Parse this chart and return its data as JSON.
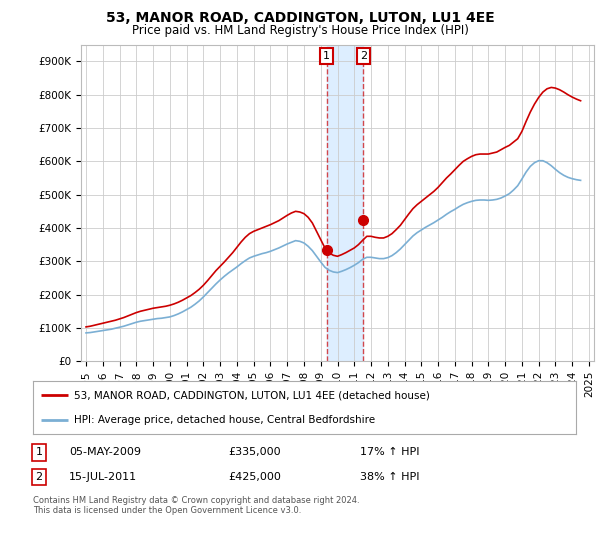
{
  "title": "53, MANOR ROAD, CADDINGTON, LUTON, LU1 4EE",
  "subtitle": "Price paid vs. HM Land Registry's House Price Index (HPI)",
  "legend_line1": "53, MANOR ROAD, CADDINGTON, LUTON, LU1 4EE (detached house)",
  "legend_line2": "HPI: Average price, detached house, Central Bedfordshire",
  "footnote": "Contains HM Land Registry data © Crown copyright and database right 2024.\nThis data is licensed under the Open Government Licence v3.0.",
  "transaction1_date": "05-MAY-2009",
  "transaction1_price": "£335,000",
  "transaction1_hpi": "17% ↑ HPI",
  "transaction2_date": "15-JUL-2011",
  "transaction2_price": "£425,000",
  "transaction2_hpi": "38% ↑ HPI",
  "red_color": "#cc0000",
  "blue_color": "#7bafd4",
  "shaded_color": "#ddeeff",
  "ylim": [
    0,
    950000
  ],
  "xlim_start": 1994.7,
  "xlim_end": 2025.3,
  "red_years": [
    1995.0,
    1995.25,
    1995.5,
    1995.75,
    1996.0,
    1996.25,
    1996.5,
    1996.75,
    1997.0,
    1997.25,
    1997.5,
    1997.75,
    1998.0,
    1998.25,
    1998.5,
    1998.75,
    1999.0,
    1999.25,
    1999.5,
    1999.75,
    2000.0,
    2000.25,
    2000.5,
    2000.75,
    2001.0,
    2001.25,
    2001.5,
    2001.75,
    2002.0,
    2002.25,
    2002.5,
    2002.75,
    2003.0,
    2003.25,
    2003.5,
    2003.75,
    2004.0,
    2004.25,
    2004.5,
    2004.75,
    2005.0,
    2005.25,
    2005.5,
    2005.75,
    2006.0,
    2006.25,
    2006.5,
    2006.75,
    2007.0,
    2007.25,
    2007.5,
    2007.75,
    2008.0,
    2008.25,
    2008.5,
    2008.75,
    2009.0,
    2009.25,
    2009.5,
    2009.75,
    2010.0,
    2010.25,
    2010.5,
    2010.75,
    2011.0,
    2011.25,
    2011.5,
    2011.75,
    2012.0,
    2012.25,
    2012.5,
    2012.75,
    2013.0,
    2013.25,
    2013.5,
    2013.75,
    2014.0,
    2014.25,
    2014.5,
    2014.75,
    2015.0,
    2015.25,
    2015.5,
    2015.75,
    2016.0,
    2016.25,
    2016.5,
    2016.75,
    2017.0,
    2017.25,
    2017.5,
    2017.75,
    2018.0,
    2018.25,
    2018.5,
    2018.75,
    2019.0,
    2019.25,
    2019.5,
    2019.75,
    2020.0,
    2020.25,
    2020.5,
    2020.75,
    2021.0,
    2021.25,
    2021.5,
    2021.75,
    2022.0,
    2022.25,
    2022.5,
    2022.75,
    2023.0,
    2023.25,
    2023.5,
    2023.75,
    2024.0,
    2024.25,
    2024.5
  ],
  "red_values": [
    103000,
    105000,
    108000,
    111000,
    114000,
    117000,
    120000,
    123000,
    127000,
    131000,
    136000,
    141000,
    146000,
    150000,
    153000,
    156000,
    159000,
    161000,
    163000,
    165000,
    168000,
    172000,
    177000,
    183000,
    190000,
    197000,
    206000,
    216000,
    228000,
    242000,
    257000,
    272000,
    285000,
    298000,
    312000,
    326000,
    342000,
    358000,
    372000,
    383000,
    390000,
    395000,
    400000,
    405000,
    410000,
    416000,
    422000,
    430000,
    438000,
    445000,
    450000,
    448000,
    443000,
    432000,
    415000,
    390000,
    365000,
    340000,
    325000,
    318000,
    315000,
    320000,
    326000,
    333000,
    340000,
    350000,
    363000,
    375000,
    375000,
    372000,
    370000,
    370000,
    375000,
    383000,
    395000,
    408000,
    425000,
    442000,
    458000,
    470000,
    480000,
    490000,
    500000,
    510000,
    522000,
    536000,
    550000,
    562000,
    575000,
    588000,
    600000,
    608000,
    615000,
    620000,
    622000,
    622000,
    622000,
    625000,
    628000,
    635000,
    642000,
    648000,
    658000,
    668000,
    690000,
    720000,
    748000,
    772000,
    792000,
    808000,
    818000,
    822000,
    820000,
    815000,
    808000,
    800000,
    793000,
    787000,
    782000
  ],
  "blue_years": [
    1995.0,
    1995.25,
    1995.5,
    1995.75,
    1996.0,
    1996.25,
    1996.5,
    1996.75,
    1997.0,
    1997.25,
    1997.5,
    1997.75,
    1998.0,
    1998.25,
    1998.5,
    1998.75,
    1999.0,
    1999.25,
    1999.5,
    1999.75,
    2000.0,
    2000.25,
    2000.5,
    2000.75,
    2001.0,
    2001.25,
    2001.5,
    2001.75,
    2002.0,
    2002.25,
    2002.5,
    2002.75,
    2003.0,
    2003.25,
    2003.5,
    2003.75,
    2004.0,
    2004.25,
    2004.5,
    2004.75,
    2005.0,
    2005.25,
    2005.5,
    2005.75,
    2006.0,
    2006.25,
    2006.5,
    2006.75,
    2007.0,
    2007.25,
    2007.5,
    2007.75,
    2008.0,
    2008.25,
    2008.5,
    2008.75,
    2009.0,
    2009.25,
    2009.5,
    2009.75,
    2010.0,
    2010.25,
    2010.5,
    2010.75,
    2011.0,
    2011.25,
    2011.5,
    2011.75,
    2012.0,
    2012.25,
    2012.5,
    2012.75,
    2013.0,
    2013.25,
    2013.5,
    2013.75,
    2014.0,
    2014.25,
    2014.5,
    2014.75,
    2015.0,
    2015.25,
    2015.5,
    2015.75,
    2016.0,
    2016.25,
    2016.5,
    2016.75,
    2017.0,
    2017.25,
    2017.5,
    2017.75,
    2018.0,
    2018.25,
    2018.5,
    2018.75,
    2019.0,
    2019.25,
    2019.5,
    2019.75,
    2020.0,
    2020.25,
    2020.5,
    2020.75,
    2021.0,
    2021.25,
    2021.5,
    2021.75,
    2022.0,
    2022.25,
    2022.5,
    2022.75,
    2023.0,
    2023.25,
    2023.5,
    2023.75,
    2024.0,
    2024.25,
    2024.5
  ],
  "blue_values": [
    85000,
    86000,
    88000,
    90000,
    92000,
    94000,
    96000,
    99000,
    102000,
    105000,
    109000,
    113000,
    117000,
    120000,
    122000,
    124000,
    126000,
    128000,
    129000,
    131000,
    133000,
    137000,
    142000,
    148000,
    155000,
    162000,
    171000,
    181000,
    193000,
    206000,
    219000,
    232000,
    244000,
    255000,
    265000,
    274000,
    283000,
    293000,
    302000,
    310000,
    315000,
    319000,
    323000,
    326000,
    330000,
    335000,
    340000,
    346000,
    352000,
    357000,
    362000,
    360000,
    355000,
    345000,
    332000,
    315000,
    298000,
    282000,
    273000,
    268000,
    266000,
    270000,
    275000,
    281000,
    288000,
    296000,
    306000,
    312000,
    312000,
    310000,
    308000,
    308000,
    311000,
    317000,
    326000,
    337000,
    350000,
    363000,
    376000,
    386000,
    394000,
    402000,
    409000,
    416000,
    424000,
    432000,
    441000,
    449000,
    456000,
    464000,
    471000,
    476000,
    480000,
    483000,
    484000,
    484000,
    483000,
    484000,
    486000,
    490000,
    496000,
    503000,
    514000,
    527000,
    547000,
    568000,
    585000,
    596000,
    602000,
    602000,
    596000,
    587000,
    576000,
    566000,
    558000,
    552000,
    548000,
    545000,
    543000
  ],
  "transaction1_x": 2009.35,
  "transaction1_y": 335000,
  "transaction2_x": 2011.54,
  "transaction2_y": 425000,
  "xticks": [
    1995,
    1996,
    1997,
    1998,
    1999,
    2000,
    2001,
    2002,
    2003,
    2004,
    2005,
    2006,
    2007,
    2008,
    2009,
    2010,
    2011,
    2012,
    2013,
    2014,
    2015,
    2016,
    2017,
    2018,
    2019,
    2020,
    2021,
    2022,
    2023,
    2024,
    2025
  ],
  "bg_color": "#ffffff",
  "grid_color": "#cccccc"
}
